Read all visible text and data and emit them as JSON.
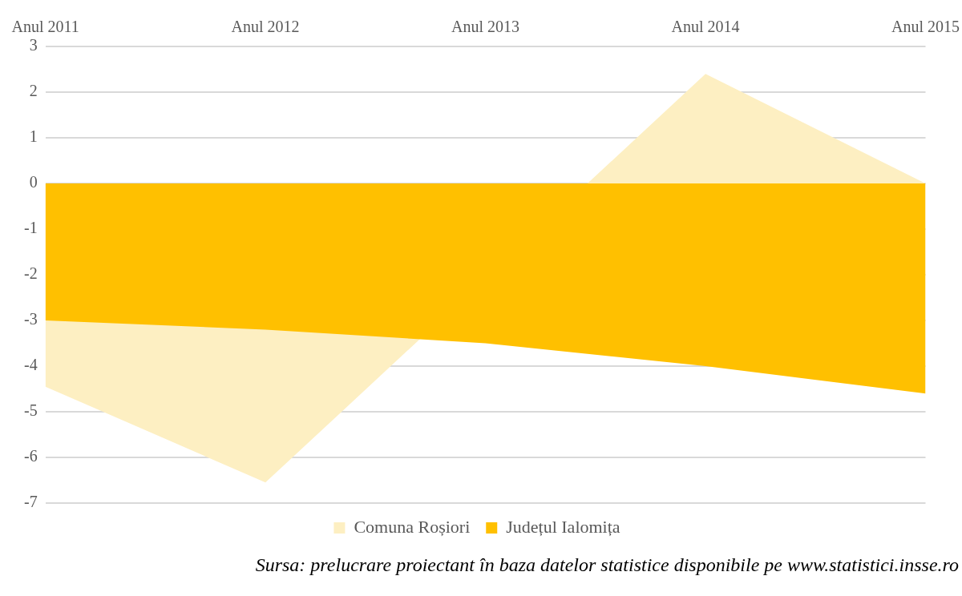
{
  "chart_data": {
    "type": "area",
    "categories": [
      "Anul 2011",
      "Anul 2012",
      "Anul 2013",
      "Anul 2014",
      "Anul 2015"
    ],
    "series": [
      {
        "name": "Comuna Roșiori",
        "color": "#fdefc2",
        "values": [
          -4.45,
          -6.55,
          null,
          2.4,
          0
        ]
      },
      {
        "name": "Județul Ialomița",
        "color": "#ffc000",
        "values": [
          -3.0,
          -3.2,
          -3.5,
          -4.0,
          -4.6
        ]
      }
    ],
    "ylim": [
      -7,
      3
    ],
    "yticks": [
      -7,
      -6,
      -5,
      -4,
      -3,
      -2,
      -1,
      0,
      1,
      2,
      3
    ],
    "grid": "y",
    "legend": "bottom",
    "annotations": [
      "Sursa: prelucrare proiectant în baza datelor statistice disponibile pe www.statistici.insse.ro"
    ]
  }
}
